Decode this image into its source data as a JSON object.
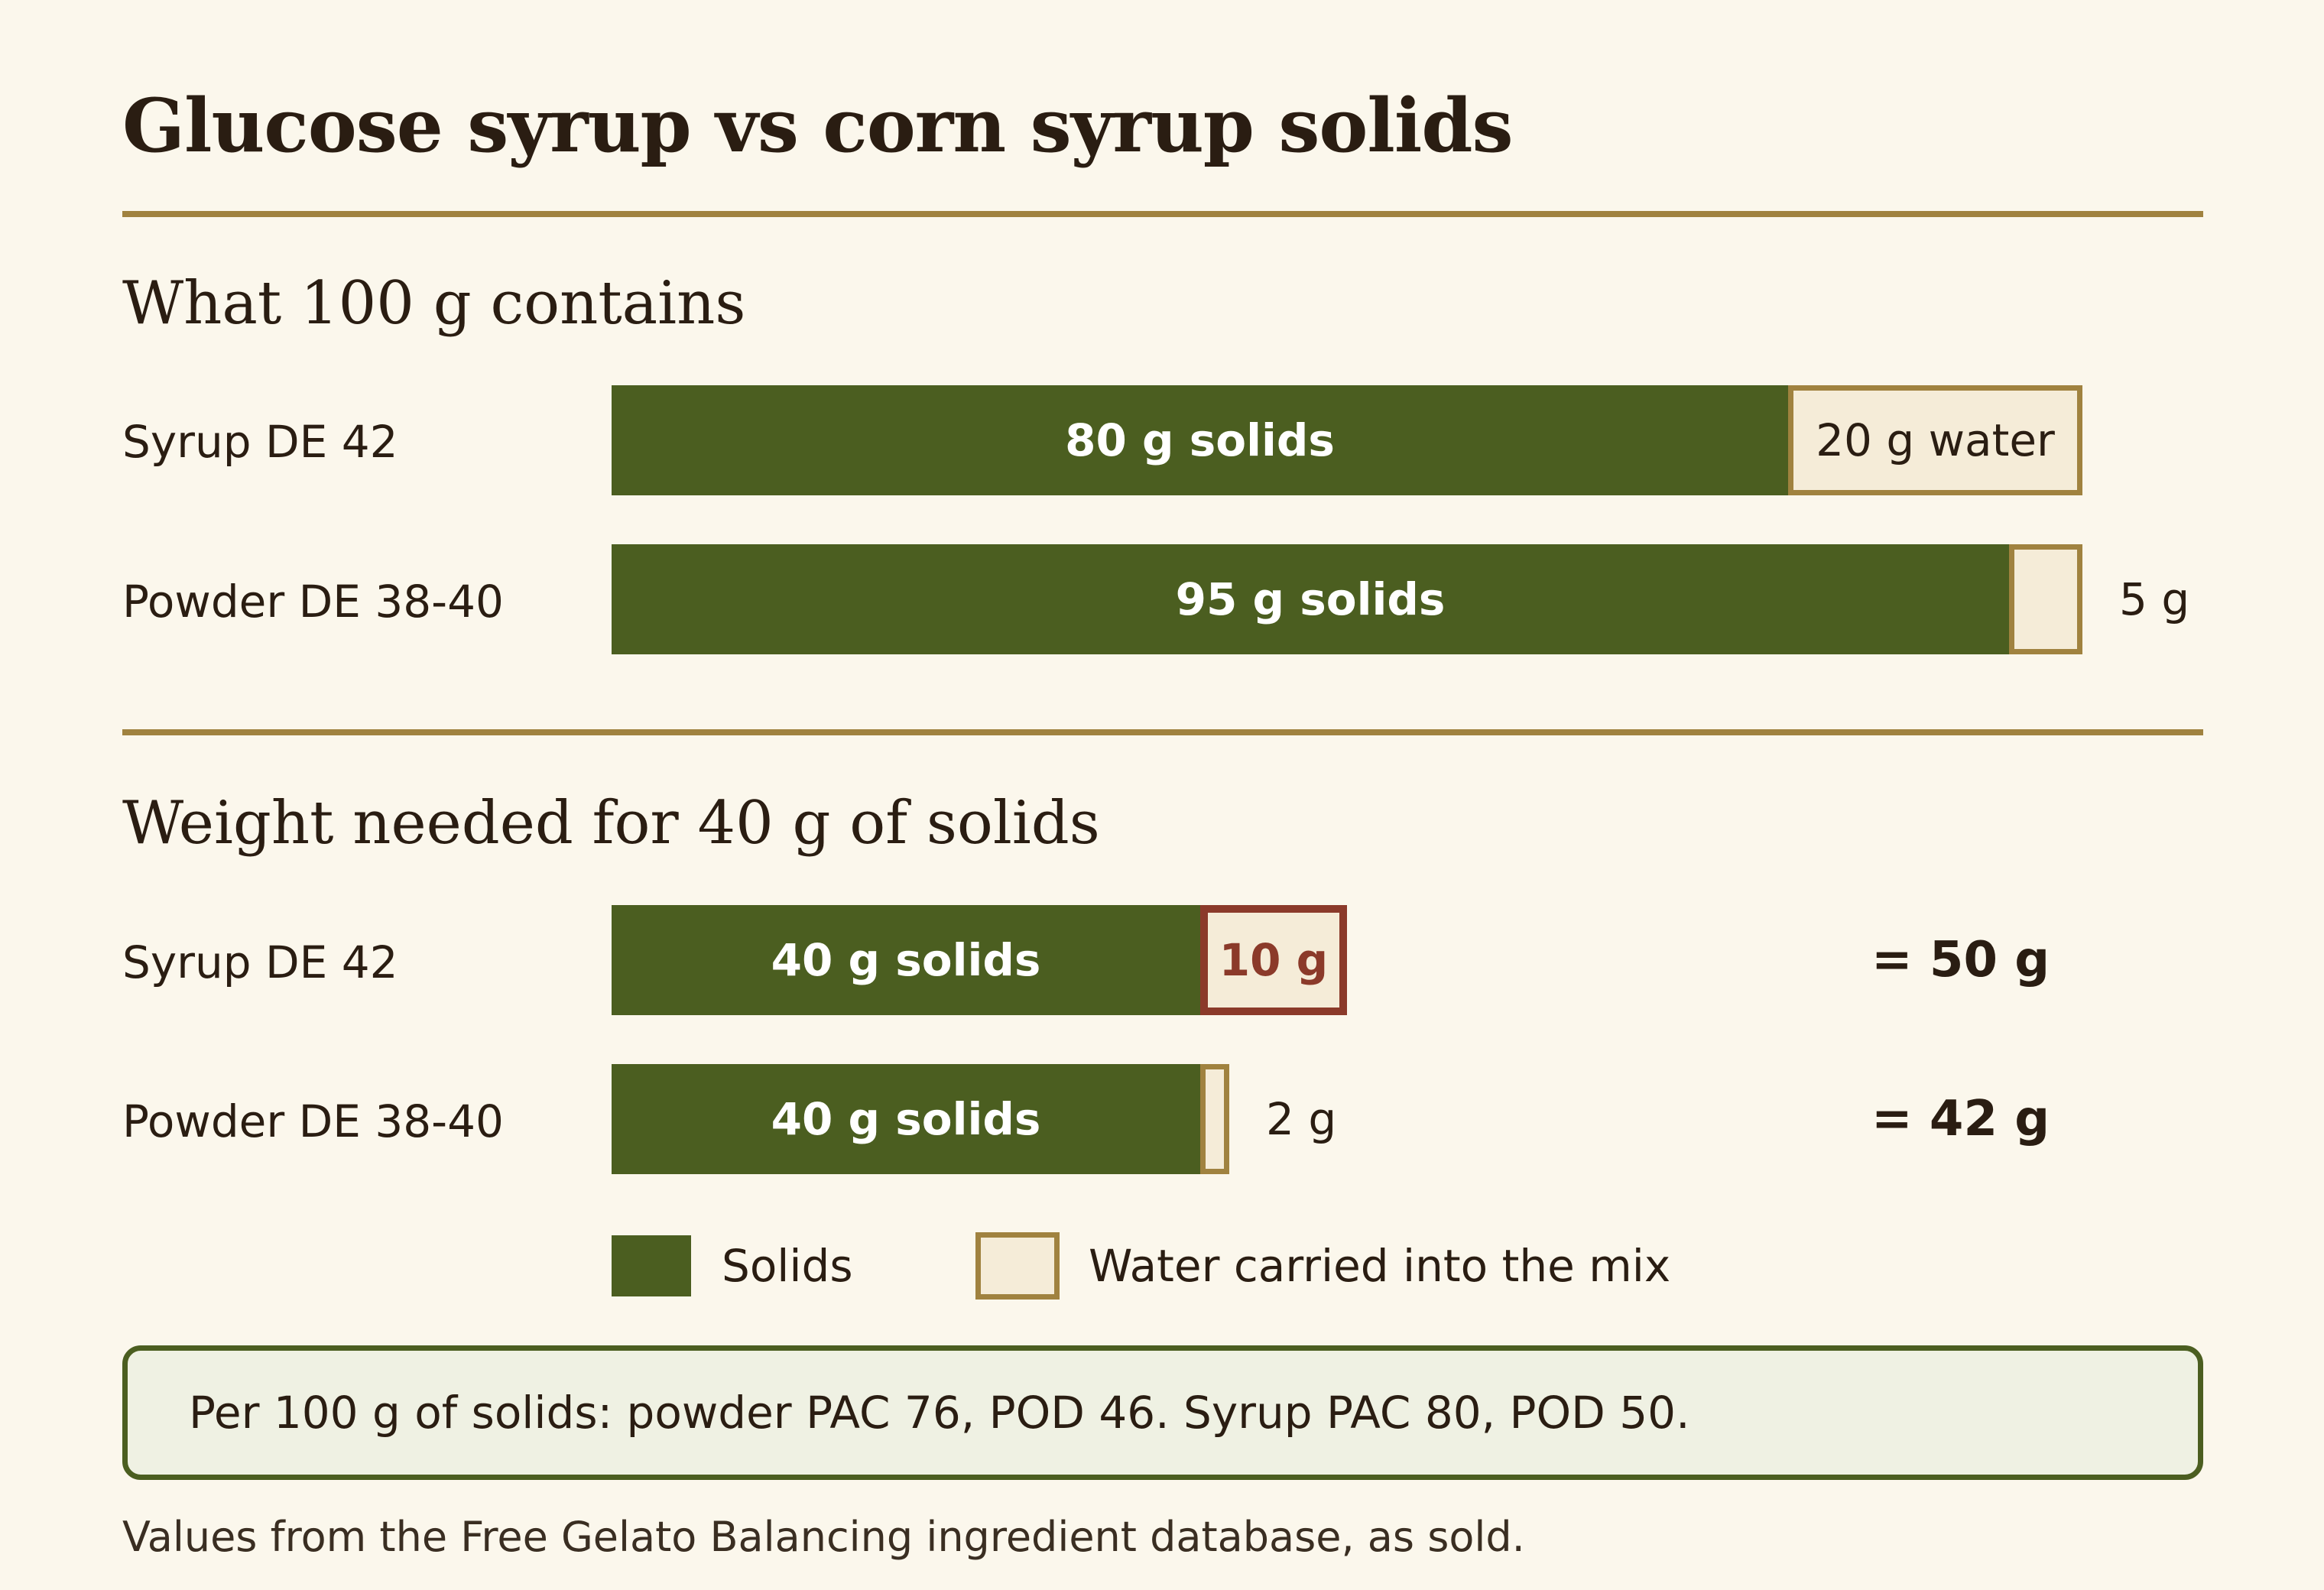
{
  "title": "Glucose syrup vs corn syrup solids",
  "colors": {
    "solids": "#4b5e20",
    "water_fill": "#f5ecd8",
    "water_border": "#a0823f",
    "highlight": "#8b3a2a",
    "rule": "#a0823f"
  },
  "chart_data": [
    {
      "type": "bar",
      "orientation": "horizontal",
      "stacked": true,
      "title": "What 100 g contains",
      "categories": [
        "Syrup DE 42",
        "Powder DE 38-40"
      ],
      "series": [
        {
          "name": "Solids",
          "values": [
            80,
            95
          ],
          "labels": [
            "80 g solids",
            "95 g solids"
          ]
        },
        {
          "name": "Water carried into the mix",
          "values": [
            20,
            5
          ],
          "labels": [
            "20 g water",
            "5 g"
          ]
        }
      ],
      "unit": "g"
    },
    {
      "type": "bar",
      "orientation": "horizontal",
      "stacked": true,
      "title": "Weight needed for 40 g of solids",
      "categories": [
        "Syrup DE 42",
        "Powder DE 38-40"
      ],
      "series": [
        {
          "name": "Solids",
          "values": [
            40,
            40
          ],
          "labels": [
            "40 g solids",
            "40 g solids"
          ]
        },
        {
          "name": "Water carried into the mix",
          "values": [
            10,
            2
          ],
          "labels": [
            "10 g",
            "2 g"
          ]
        }
      ],
      "totals": [
        "= 50 g",
        "= 42 g"
      ],
      "highlight": {
        "category": "Syrup DE 42",
        "series": "Water carried into the mix"
      },
      "unit": "g"
    }
  ],
  "legend": {
    "solids": "Solids",
    "water": "Water carried into the mix"
  },
  "note": "Per 100 g of solids: powder PAC 76, POD 46. Syrup PAC 80, POD 50.",
  "source": "Values from the Free Gelato Balancing ingredient database, as sold."
}
